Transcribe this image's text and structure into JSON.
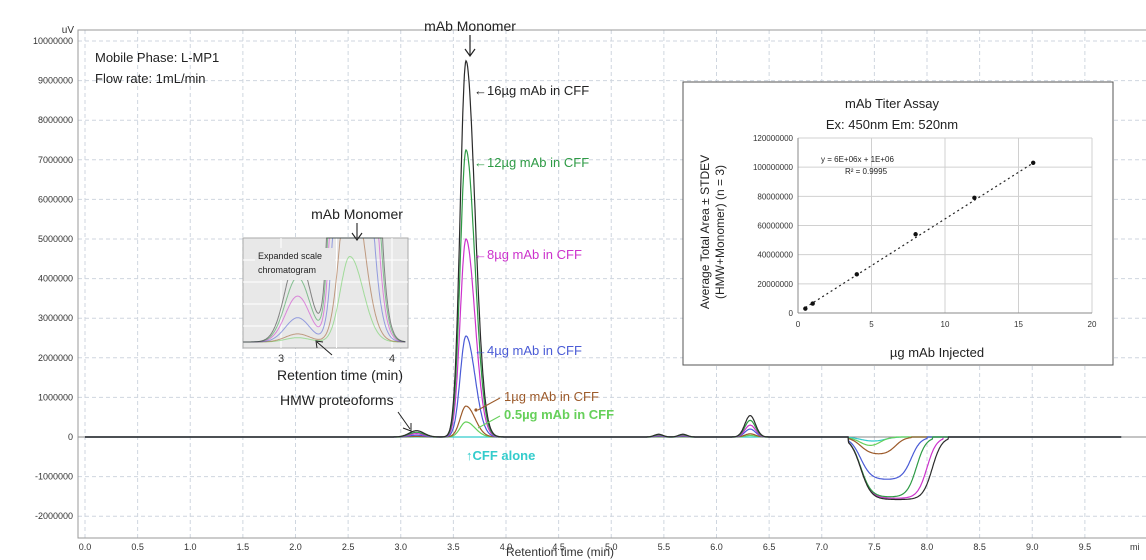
{
  "chart_data": [
    {
      "type": "line",
      "y_unit": "uV",
      "xlabel": "Retention time (min)",
      "x_ticks": [
        "0.0",
        "0.5",
        "1.0",
        "1.5",
        "2.0",
        "2.5",
        "3.0",
        "3.5",
        "4.0",
        "4.5",
        "5.0",
        "5.5",
        "6.0",
        "6.5",
        "7.0",
        "7.5",
        "8.0",
        "8.5",
        "9.0",
        "9.5"
      ],
      "x_unit_label": "mi",
      "y_ticks": [
        "10000000",
        "9000000",
        "8000000",
        "7000000",
        "6000000",
        "5000000",
        "4000000",
        "3000000",
        "2000000",
        "1000000",
        "0",
        "-1000000",
        "-2000000"
      ],
      "xlim": [
        0,
        9.8
      ],
      "ylim": [
        -2100000,
        10100000
      ],
      "grid": true,
      "info_lines": [
        "Mobile Phase: L-MP1",
        "Flow rate: 1mL/min"
      ],
      "colors": {
        "black": "#2b2b2b",
        "green": "#2e9b45",
        "magenta": "#cc33cc",
        "blue": "#4a5bd6",
        "brown": "#9c5a2a",
        "lightgreen": "#66d05a",
        "cyan": "#33cccc"
      },
      "series": [
        {
          "label": "16µg mAb in CFF",
          "color_key": "black",
          "peak": 9500000,
          "hmw": 160000,
          "p55": 70000,
          "p63": 540000,
          "neg": -1580000,
          "neg_end": 8.05
        },
        {
          "label": "12µg mAb in CFF",
          "color_key": "green",
          "peak": 7250000,
          "hmw": 120000,
          "p55": 55000,
          "p63": 420000,
          "neg": -1520000,
          "neg_end": 7.9
        },
        {
          "label": "8µg mAb in CFF",
          "color_key": "magenta",
          "peak": 5000000,
          "hmw": 85000,
          "p55": 40000,
          "p63": 300000,
          "neg": -1550000,
          "neg_end": 8.0
        },
        {
          "label": "4µg mAb in CFF",
          "color_key": "blue",
          "peak": 2550000,
          "hmw": 45000,
          "p55": 25000,
          "p63": 200000,
          "neg": -1080000,
          "neg_end": 7.85
        },
        {
          "label": "1µg mAb in CFF",
          "color_key": "brown",
          "peak": 780000,
          "hmw": 15000,
          "p55": 10000,
          "p63": 80000,
          "neg": -450000,
          "neg_end": 7.7
        },
        {
          "label": "0.5µg mAb in CFF",
          "color_key": "lightgreen",
          "peak": 380000,
          "hmw": 8000,
          "p55": 5000,
          "p63": 40000,
          "neg": -280000,
          "neg_end": 7.55
        },
        {
          "label": "CFF alone",
          "color_key": "cyan",
          "peak": 0,
          "hmw": 0,
          "p55": 0,
          "p63": 0,
          "neg": -120000,
          "neg_end": 7.6
        }
      ],
      "annotations": {
        "monomer": "mAb Monomer",
        "hmw": "HMW proteoforms",
        "s16": "←16µg mAb in CFF",
        "s12": "←12µg mAb in CFF",
        "s8": "←8µg mAb in CFF",
        "s4": "←4µg mAb in CFF",
        "s1": "1µg mAb in CFF",
        "s05": "0.5µg mAb in CFF",
        "cff": "↑CFF alone"
      }
    },
    {
      "type": "line",
      "inset_title": "mAb Monomer",
      "inset_label_lines": [
        "Expanded scale",
        "chromatogram"
      ],
      "xlabel": "Retention time (min)",
      "x_ticks": [
        "3",
        "4"
      ]
    },
    {
      "type": "scatter",
      "title": "mAb Titer Assay",
      "subtitle": "Ex: 450nm Em: 520nm",
      "xlabel": "µg mAb Injected",
      "ylabel_lines": [
        "Average Total Area ± STDEV",
        "(HMW+Monomer) (n = 3)"
      ],
      "xlim": [
        0,
        20
      ],
      "ylim": [
        0,
        120000000
      ],
      "x_ticks": [
        "0",
        "5",
        "10",
        "15",
        "20"
      ],
      "y_ticks": [
        "0",
        "20000000",
        "40000000",
        "60000000",
        "80000000",
        "100000000",
        "120000000"
      ],
      "points": [
        {
          "x": 0.5,
          "y": 3000000
        },
        {
          "x": 1,
          "y": 6500000
        },
        {
          "x": 4,
          "y": 26500000
        },
        {
          "x": 8,
          "y": 54000000
        },
        {
          "x": 12,
          "y": 79000000
        },
        {
          "x": 16,
          "y": 103000000
        }
      ],
      "trendline": {
        "equation": "y = 6E+06x + 1E+06",
        "r2": "R² = 0.9995"
      },
      "grid": true
    }
  ]
}
